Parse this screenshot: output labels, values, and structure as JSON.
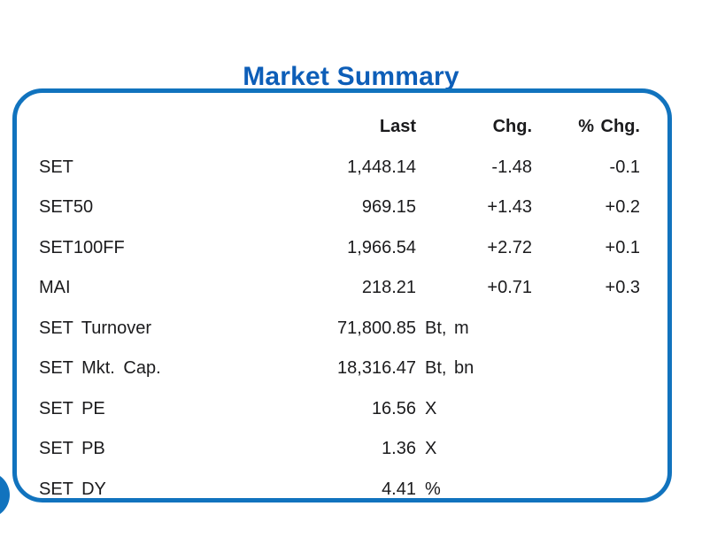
{
  "title": "Market Summary",
  "colors": {
    "accent": "#1173BE",
    "title_blue": "#0D5EB8",
    "text": "#1B1B1D"
  },
  "table": {
    "headers": {
      "last": "Last",
      "chg": "Chg.",
      "pchg": "% Chg."
    },
    "rows": [
      {
        "label": "SET",
        "last": "1,448.14",
        "unit": "",
        "chg": "-1.48",
        "pchg": "-0.1"
      },
      {
        "label": "SET50",
        "last": "969.15",
        "unit": "",
        "chg": "+1.43",
        "pchg": "+0.2"
      },
      {
        "label": "SET100FF",
        "last": "1,966.54",
        "unit": "",
        "chg": "+2.72",
        "pchg": "+0.1"
      },
      {
        "label": "MAI",
        "last": "218.21",
        "unit": "",
        "chg": "+0.71",
        "pchg": "+0.3"
      },
      {
        "label": "SET Turnover",
        "last": "71,800.85",
        "unit": "Bt, m",
        "chg": "",
        "pchg": ""
      },
      {
        "label": "SET Mkt. Cap.",
        "last": "18,316.47",
        "unit": "Bt, bn",
        "chg": "",
        "pchg": ""
      },
      {
        "label": "SET PE",
        "last": "16.56",
        "unit": "X",
        "chg": "",
        "pchg": ""
      },
      {
        "label": "SET PB",
        "last": "1.36",
        "unit": "X",
        "chg": "",
        "pchg": ""
      },
      {
        "label": "SET DY",
        "last": "4.41",
        "unit": "%",
        "chg": "",
        "pchg": ""
      }
    ]
  }
}
